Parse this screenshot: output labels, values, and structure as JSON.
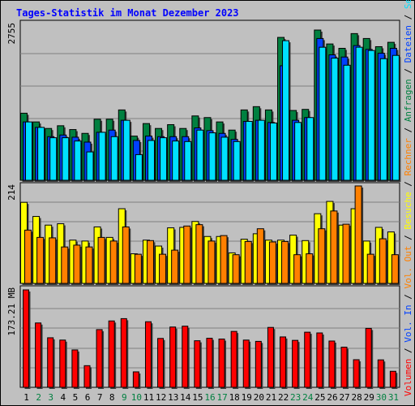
{
  "title": "Tages-Statistik im Monat Dezember 2023",
  "colors": {
    "background": "#c0c0c0",
    "title": "#0000ff",
    "anfragen": "#008040",
    "dateien": "#0040ff",
    "seiten": "#00e0ff",
    "besuche": "#ffff00",
    "rechner": "#ff8000",
    "volumen": "#ff0000",
    "weekend_day": "#008040",
    "normal_day": "#000000"
  },
  "chart_data": [
    {
      "type": "bar",
      "panel": "top",
      "y_max_label": "2755",
      "ylim": [
        0,
        2755
      ],
      "legend_labels": [
        {
          "text": "Anfragen",
          "color": "#008040"
        },
        {
          "text": "Dateien",
          "color": "#0040ff"
        },
        {
          "text": "Seiten",
          "color": "#00e0ff"
        }
      ],
      "categories": [
        "1",
        "2",
        "3",
        "4",
        "5",
        "6",
        "7",
        "8",
        "9",
        "10",
        "11",
        "12",
        "13",
        "14",
        "15",
        "16",
        "17",
        "18",
        "19",
        "20",
        "21",
        "22",
        "23",
        "24",
        "25",
        "26",
        "27",
        "28",
        "29",
        "30",
        "31"
      ],
      "series": [
        {
          "name": "Anfragen",
          "values": [
            1230,
            1070,
            950,
            1000,
            930,
            860,
            1120,
            1120,
            1290,
            810,
            1040,
            950,
            1020,
            950,
            1180,
            1150,
            1070,
            920,
            1290,
            1350,
            1290,
            2620,
            1280,
            1300,
            2755,
            2500,
            2420,
            2690,
            2600,
            2450,
            2530
          ]
        },
        {
          "name": "Dateien",
          "values": [
            1070,
            970,
            800,
            830,
            790,
            700,
            880,
            920,
            1100,
            730,
            810,
            800,
            800,
            800,
            960,
            910,
            860,
            750,
            1080,
            1100,
            1060,
            2100,
            1100,
            1150,
            2600,
            2300,
            2260,
            2470,
            2400,
            2330,
            2420
          ]
        },
        {
          "name": "Seiten",
          "values": [
            1070,
            970,
            780,
            780,
            720,
            520,
            880,
            800,
            1100,
            470,
            730,
            780,
            720,
            710,
            920,
            870,
            790,
            710,
            1080,
            1100,
            1050,
            2560,
            1060,
            1150,
            2440,
            2240,
            2110,
            2440,
            2380,
            2230,
            2290
          ]
        }
      ],
      "weekend_days": [
        2,
        3,
        9,
        10,
        16,
        17,
        23,
        24,
        30,
        31
      ]
    },
    {
      "type": "bar",
      "panel": "middle",
      "y_max_label": "214",
      "ylim": [
        0,
        214
      ],
      "legend_labels": [
        {
          "text": "Besuche",
          "color": "#ffff00"
        },
        {
          "text": "Rechner",
          "color": "#ff8000"
        }
      ],
      "categories": [
        "1",
        "2",
        "3",
        "4",
        "5",
        "6",
        "7",
        "8",
        "9",
        "10",
        "11",
        "12",
        "13",
        "14",
        "15",
        "16",
        "17",
        "18",
        "19",
        "20",
        "21",
        "22",
        "23",
        "24",
        "25",
        "26",
        "27",
        "28",
        "29",
        "30",
        "31"
      ],
      "series": [
        {
          "name": "Besuche",
          "values": [
            178,
            147,
            128,
            131,
            95,
            93,
            124,
            101,
            164,
            65,
            95,
            82,
            122,
            123,
            136,
            103,
            103,
            67,
            97,
            109,
            95,
            95,
            106,
            94,
            153,
            180,
            128,
            164,
            93,
            123,
            113
          ]
        },
        {
          "name": "Rechner",
          "values": [
            117,
            101,
            100,
            80,
            84,
            80,
            101,
            93,
            124,
            64,
            94,
            64,
            73,
            126,
            129,
            93,
            105,
            63,
            92,
            120,
            91,
            92,
            63,
            65,
            120,
            159,
            130,
            214,
            64,
            98,
            63
          ]
        }
      ]
    },
    {
      "type": "bar",
      "panel": "bottom",
      "y_max_label": "173.21 MB",
      "ylim": [
        0,
        173.21
      ],
      "legend_labels": [
        {
          "text": "Volumen",
          "color": "#ff0000"
        },
        {
          "text": "Vol. In",
          "color": "#0040ff"
        },
        {
          "text": "Vol. Out",
          "color": "#ff8000"
        }
      ],
      "categories": [
        "1",
        "2",
        "3",
        "4",
        "5",
        "6",
        "7",
        "8",
        "9",
        "10",
        "11",
        "12",
        "13",
        "14",
        "15",
        "16",
        "17",
        "18",
        "19",
        "20",
        "21",
        "22",
        "23",
        "24",
        "25",
        "26",
        "27",
        "28",
        "29",
        "30",
        "31"
      ],
      "series": [
        {
          "name": "Volumen",
          "values": [
            173.21,
            114.4,
            88.1,
            84.0,
            66.5,
            38.5,
            102.6,
            118.0,
            122.1,
            27.5,
            116.6,
            86.9,
            107.2,
            108.7,
            82.8,
            87.2,
            85.8,
            99.4,
            84.0,
            81.7,
            106.5,
            89.6,
            83.5,
            98.0,
            96.7,
            82.3,
            71.4,
            49.1,
            104.8,
            48.8,
            28.5
          ]
        }
      ]
    }
  ],
  "day_labels": [
    "1",
    "2",
    "3",
    "4",
    "5",
    "6",
    "7",
    "8",
    "9",
    "10",
    "11",
    "12",
    "13",
    "14",
    "15",
    "16",
    "17",
    "18",
    "19",
    "20",
    "21",
    "22",
    "23",
    "24",
    "25",
    "26",
    "27",
    "28",
    "29",
    "30",
    "31"
  ],
  "weekend_days": [
    2,
    3,
    9,
    10,
    16,
    17,
    23,
    24,
    30,
    31
  ],
  "separator": "/"
}
